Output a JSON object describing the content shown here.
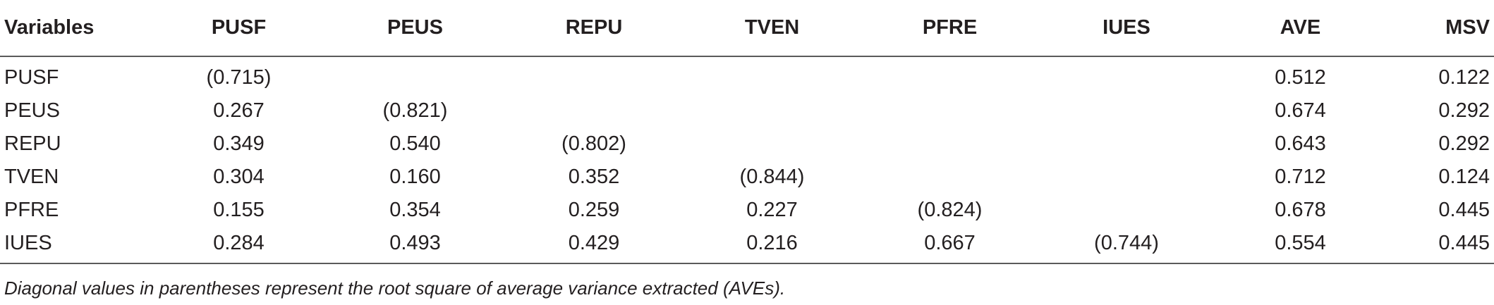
{
  "table": {
    "headers": [
      "Variables",
      "PUSF",
      "PEUS",
      "REPU",
      "TVEN",
      "PFRE",
      "IUES",
      "AVE",
      "MSV"
    ],
    "rows": [
      [
        "PUSF",
        "(0.715)",
        "",
        "",
        "",
        "",
        "",
        "0.512",
        "0.122"
      ],
      [
        "PEUS",
        "0.267",
        "(0.821)",
        "",
        "",
        "",
        "",
        "0.674",
        "0.292"
      ],
      [
        "REPU",
        "0.349",
        "0.540",
        "(0.802)",
        "",
        "",
        "",
        "0.643",
        "0.292"
      ],
      [
        "TVEN",
        "0.304",
        "0.160",
        "0.352",
        "(0.844)",
        "",
        "",
        "0.712",
        "0.124"
      ],
      [
        "PFRE",
        "0.155",
        "0.354",
        "0.259",
        "0.227",
        "(0.824)",
        "",
        "0.678",
        "0.445"
      ],
      [
        "IUES",
        "0.284",
        "0.493",
        "0.429",
        "0.216",
        "0.667",
        "(0.744)",
        "0.554",
        "0.445"
      ]
    ]
  },
  "footnote": "Diagonal values in parentheses represent the root square of average variance extracted (AVEs)."
}
